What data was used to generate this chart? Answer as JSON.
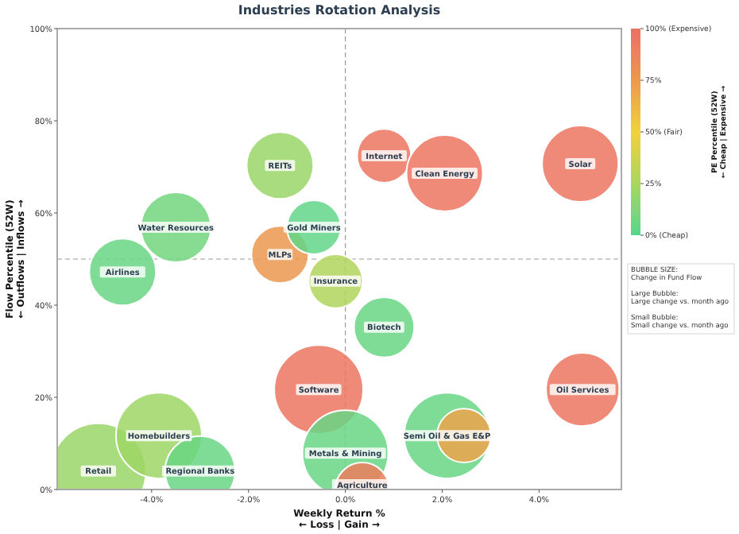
{
  "chart_data": {
    "type": "bubble",
    "title": "Industries Rotation Analysis",
    "xlabel": "Weekly Return %\n← Loss | Gain →",
    "ylabel": "Flow Percentile (52W)\n← Outflows | Inflows →",
    "clabel": "PE Percentile (52W)\n← Cheap | Expensive →",
    "xlim": [
      -5.95,
      5.7
    ],
    "xticks": [
      {
        "value": -4,
        "label": "-4.0%"
      },
      {
        "value": -2,
        "label": "-2.0%"
      },
      {
        "value": 0,
        "label": "0.0%"
      },
      {
        "value": 2,
        "label": "2.0%"
      },
      {
        "value": 4,
        "label": "4.0%"
      }
    ],
    "ylim": [
      0,
      100
    ],
    "yticks": [
      {
        "value": 0,
        "label": "0%"
      },
      {
        "value": 20,
        "label": "20%"
      },
      {
        "value": 40,
        "label": "40%"
      },
      {
        "value": 60,
        "label": "60%"
      },
      {
        "value": 80,
        "label": "80%"
      },
      {
        "value": 100,
        "label": "100%"
      }
    ],
    "clim": [
      0,
      100
    ],
    "cticks": [
      {
        "value": 0,
        "label": "0% (Cheap)"
      },
      {
        "value": 25,
        "label": "25%"
      },
      {
        "value": 50,
        "label": "50% (Fair)"
      },
      {
        "value": 75,
        "label": "75%"
      },
      {
        "value": 100,
        "label": "100% (Expensive)"
      }
    ],
    "ref_lines": [
      {
        "axis": "x",
        "value": 0,
        "line_style": "dashed"
      },
      {
        "axis": "y",
        "value": 50,
        "line_style": "dashed"
      }
    ],
    "annotations": [
      "BUBBLE SIZE:\nChange in Fund Flow\n\nLarge Bubble:\nLarge change vs. month ago\n\nSmall Bubble:\nSmall change vs. month ago"
    ],
    "series": [
      {
        "name": "Retail",
        "x": [
          -5.1
        ],
        "values": [
          4
        ],
        "sizes": [
          1
        ],
        "cvalues": [
          20
        ]
      },
      {
        "name": "Homebuilders",
        "x": [
          -3.85
        ],
        "values": [
          11.7
        ],
        "sizes": [
          0.81
        ],
        "cvalues": [
          22
        ]
      },
      {
        "name": "Regional Banks",
        "x": [
          -3.0
        ],
        "values": [
          4
        ],
        "sizes": [
          0.54
        ],
        "cvalues": [
          5
        ]
      },
      {
        "name": "Software",
        "x": [
          -0.55
        ],
        "values": [
          21.7
        ],
        "sizes": [
          0.87
        ],
        "cvalues": [
          97
        ]
      },
      {
        "name": "Metals & Mining",
        "x": [
          0.0
        ],
        "values": [
          7.9
        ],
        "sizes": [
          0.81
        ],
        "cvalues": [
          5
        ]
      },
      {
        "name": "Agriculture",
        "x": [
          0.35
        ],
        "values": [
          0
        ],
        "sizes": [
          0.32
        ],
        "cvalues": [
          92
        ]
      },
      {
        "name": "Semi Oil & Gas E&P",
        "x": [
          2.1
        ],
        "values": [
          11.7
        ],
        "sizes": [
          0.81
        ],
        "cvalues": [
          5
        ]
      },
      {
        "x": [
          2.45
        ],
        "values": [
          11.7
        ],
        "sizes": [
          0.32
        ],
        "cvalues": [
          70
        ]
      },
      {
        "name": "Oil Services",
        "x": [
          4.9
        ],
        "values": [
          21.7
        ],
        "sizes": [
          0.59
        ],
        "cvalues": [
          96
        ]
      },
      {
        "name": "Biotech",
        "x": [
          0.8
        ],
        "values": [
          35.2
        ],
        "sizes": [
          0.4
        ],
        "cvalues": [
          5
        ]
      },
      {
        "name": "Insurance",
        "x": [
          -0.2
        ],
        "values": [
          45.2
        ],
        "sizes": [
          0.32
        ],
        "cvalues": [
          28
        ]
      },
      {
        "name": "Airlines",
        "x": [
          -4.6
        ],
        "values": [
          47.2
        ],
        "sizes": [
          0.49
        ],
        "cvalues": [
          5
        ]
      },
      {
        "name": "MLPs",
        "x": [
          -1.35
        ],
        "values": [
          51
        ],
        "sizes": [
          0.36
        ],
        "cvalues": [
          75
        ]
      },
      {
        "name": "Water Resources",
        "x": [
          -3.5
        ],
        "values": [
          56.9
        ],
        "sizes": [
          0.54
        ],
        "cvalues": [
          8
        ]
      },
      {
        "name": "Gold Miners",
        "x": [
          -0.65
        ],
        "values": [
          56.9
        ],
        "sizes": [
          0.32
        ],
        "cvalues": [
          3
        ]
      },
      {
        "name": "REITs",
        "x": [
          -1.35
        ],
        "values": [
          70.3
        ],
        "sizes": [
          0.49
        ],
        "cvalues": [
          20
        ]
      },
      {
        "name": "Internet",
        "x": [
          0.8
        ],
        "values": [
          72.4
        ],
        "sizes": [
          0.32
        ],
        "cvalues": [
          97
        ]
      },
      {
        "name": "Clean Energy",
        "x": [
          2.05
        ],
        "values": [
          68.6
        ],
        "sizes": [
          0.64
        ],
        "cvalues": [
          97
        ]
      },
      {
        "name": "Solar",
        "x": [
          4.85
        ],
        "values": [
          70.7
        ],
        "sizes": [
          0.64
        ],
        "cvalues": [
          96
        ]
      }
    ]
  }
}
